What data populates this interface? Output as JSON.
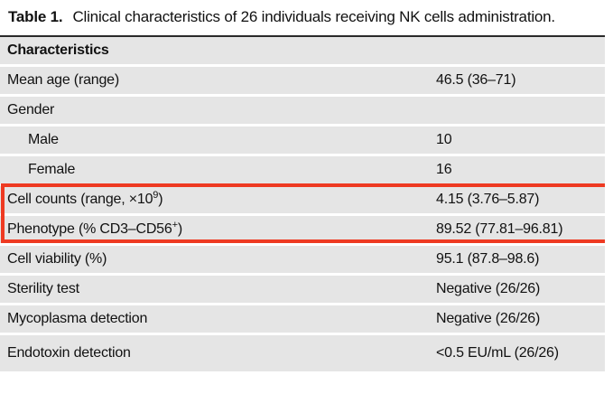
{
  "colors": {
    "row-bg": "#e5e5e5",
    "rule": "#2a2a2a",
    "highlight": "#ee3a22",
    "text": "#111111"
  },
  "caption": {
    "label": "Table 1.",
    "text": "Clinical characteristics of 26 individuals receiving NK cells administration."
  },
  "table": {
    "header": "Characteristics",
    "rows": [
      {
        "label": "Mean age (range)",
        "sup": "",
        "label_end": "",
        "value": "46.5 (36–71)"
      },
      {
        "label": "Gender",
        "sup": "",
        "label_end": "",
        "value": ""
      },
      {
        "label": "Male",
        "sup": "",
        "label_end": "",
        "value": "10"
      },
      {
        "label": "Female",
        "sup": "",
        "label_end": "",
        "value": "16"
      },
      {
        "label": "Cell counts (range, ×10",
        "sup": "9",
        "label_end": ")",
        "value": "4.15 (3.76–5.87)"
      },
      {
        "label": "Phenotype (% CD3–CD56",
        "sup": "+",
        "label_end": ")",
        "value": "89.52 (77.81–96.81)"
      },
      {
        "label": "Cell viability (%)",
        "sup": "",
        "label_end": "",
        "value": "95.1 (87.8–98.6)"
      },
      {
        "label": "Sterility test",
        "sup": "",
        "label_end": "",
        "value": "Negative (26/26)"
      },
      {
        "label": "Mycoplasma detection",
        "sup": "",
        "label_end": "",
        "value": "Negative (26/26)"
      },
      {
        "label": "Endotoxin detection",
        "sup": "",
        "label_end": "",
        "value": "<0.5 EU/mL (26/26)"
      }
    ]
  }
}
